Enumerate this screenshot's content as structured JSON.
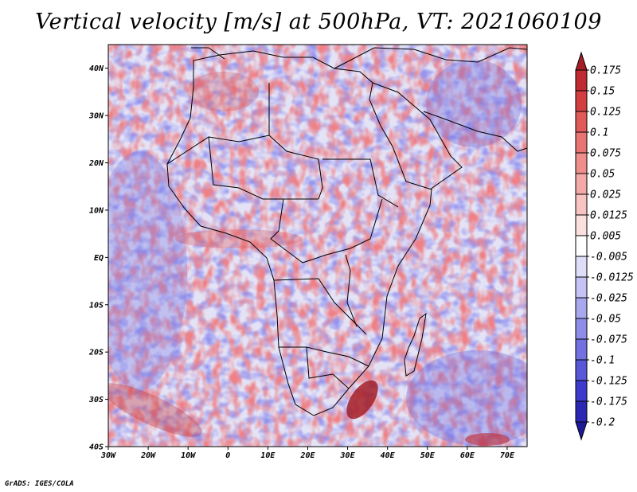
{
  "title": "Vertical velocity [m/s] at 500hPa, VT: 2021060109",
  "credit": "GrADS: IGES/COLA",
  "map": {
    "lon_range": [
      -30,
      75
    ],
    "lat_range": [
      -40,
      45
    ],
    "lat_ticks": [
      {
        "v": 40,
        "label": "40N"
      },
      {
        "v": 30,
        "label": "30N"
      },
      {
        "v": 20,
        "label": "20N"
      },
      {
        "v": 10,
        "label": "10N"
      },
      {
        "v": 0,
        "label": "EQ"
      },
      {
        "v": -10,
        "label": "10S"
      },
      {
        "v": -20,
        "label": "20S"
      },
      {
        "v": -30,
        "label": "30S"
      },
      {
        "v": -40,
        "label": "40S"
      }
    ],
    "lon_ticks": [
      {
        "v": -30,
        "label": "30W"
      },
      {
        "v": -20,
        "label": "20W"
      },
      {
        "v": -10,
        "label": "10W"
      },
      {
        "v": 0,
        "label": "0"
      },
      {
        "v": 10,
        "label": "10E"
      },
      {
        "v": 20,
        "label": "20E"
      },
      {
        "v": 30,
        "label": "30E"
      },
      {
        "v": 40,
        "label": "40E"
      },
      {
        "v": 50,
        "label": "50E"
      },
      {
        "v": 60,
        "label": "60E"
      },
      {
        "v": 70,
        "label": "70E"
      }
    ]
  },
  "colorbar": {
    "labels": [
      "0.175",
      "0.15",
      "0.125",
      "0.1",
      "0.075",
      "0.05",
      "0.025",
      "0.0125",
      "0.005",
      "-0.005",
      "-0.0125",
      "-0.025",
      "-0.05",
      "-0.075",
      "-0.1",
      "-0.125",
      "-0.175",
      "-0.2"
    ],
    "colors": [
      "#a51e26",
      "#c02a31",
      "#d33f41",
      "#e05a5a",
      "#e87573",
      "#ef8f8c",
      "#f3aaa7",
      "#f7c4c2",
      "#fbe0df",
      "#ffffff",
      "#dedef8",
      "#c4c3f3",
      "#a9a8ee",
      "#8e8de8",
      "#7371e2",
      "#5856d9",
      "#3d3bcb",
      "#2a27b4",
      "#1c1a96"
    ]
  }
}
